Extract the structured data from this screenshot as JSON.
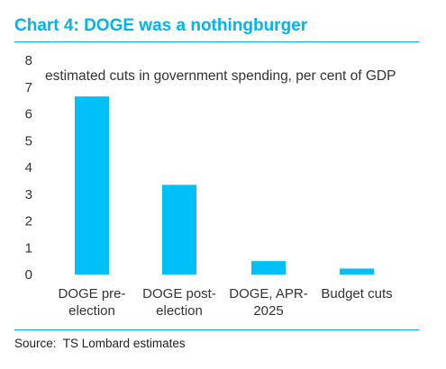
{
  "header": {
    "title": "Chart 4: DOGE was a nothingburger"
  },
  "footer": {
    "source": "Source:  TS Lombard estimates"
  },
  "chart_data": {
    "type": "bar",
    "title": "Chart 4: DOGE was a nothingburger",
    "subtitle": "estimated cuts in government spending, per cent of GDP",
    "xlabel": "",
    "ylabel": "",
    "categories": [
      [
        "DOGE pre-",
        "election"
      ],
      [
        "DOGE post-",
        "election"
      ],
      [
        "DOGE, APR-",
        "2025"
      ],
      [
        "Budget cuts"
      ]
    ],
    "values": [
      6.65,
      3.35,
      0.5,
      0.22
    ],
    "ylim": [
      0,
      8
    ],
    "yticks": [
      0,
      1,
      2,
      3,
      4,
      5,
      6,
      7,
      8
    ],
    "grid": false,
    "legend": "none",
    "colors": {
      "bar": "#00c0f8",
      "accent": "#00b4f0"
    }
  }
}
